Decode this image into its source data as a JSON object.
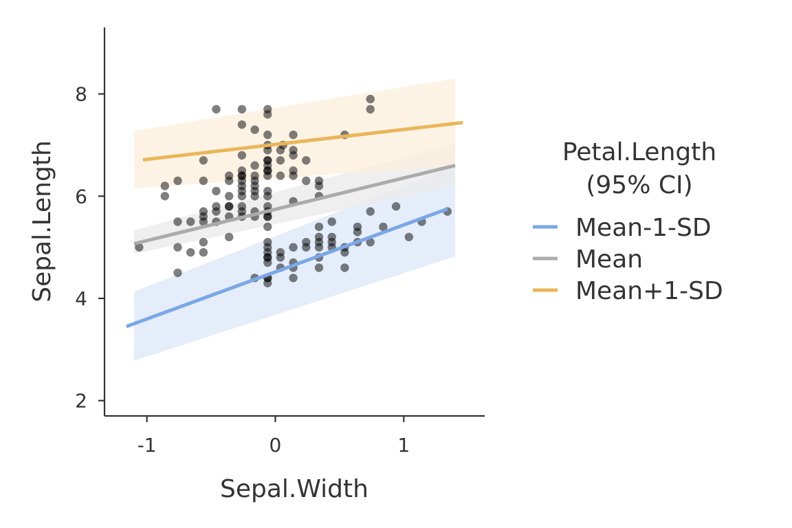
{
  "chart_data": {
    "type": "scatter",
    "xlabel": "Sepal.Width",
    "ylabel": "Sepal.Length",
    "xlim": [
      -1.33,
      1.63
    ],
    "ylim": [
      1.7,
      9.3
    ],
    "xticks": [
      -1,
      0,
      1
    ],
    "xtick_labels": [
      "-1",
      "0",
      "1"
    ],
    "yticks": [
      2,
      4,
      6,
      8
    ],
    "ytick_labels": [
      "2",
      "4",
      "6",
      "8"
    ],
    "grid": false,
    "legend": {
      "title_lines": [
        "Petal.Length",
        "(95% CI)"
      ],
      "position": "right"
    },
    "point_color": "#000000",
    "points": [
      [
        -1.06,
        5.0
      ],
      [
        -0.86,
        6.2
      ],
      [
        -0.86,
        6.0
      ],
      [
        -0.76,
        6.3
      ],
      [
        -0.76,
        5.5
      ],
      [
        -0.76,
        5.0
      ],
      [
        -0.76,
        4.5
      ],
      [
        -0.66,
        5.5
      ],
      [
        -0.66,
        4.9
      ],
      [
        -0.56,
        6.7
      ],
      [
        -0.56,
        6.3
      ],
      [
        -0.56,
        5.7
      ],
      [
        -0.56,
        5.6
      ],
      [
        -0.56,
        5.5
      ],
      [
        -0.56,
        5.1
      ],
      [
        -0.56,
        4.9
      ],
      [
        -0.46,
        7.7
      ],
      [
        -0.46,
        6.1
      ],
      [
        -0.46,
        5.8
      ],
      [
        -0.46,
        5.7
      ],
      [
        -0.46,
        5.5
      ],
      [
        -0.36,
        6.4
      ],
      [
        -0.36,
        6.3
      ],
      [
        -0.36,
        6.0
      ],
      [
        -0.36,
        5.8
      ],
      [
        -0.36,
        5.8
      ],
      [
        -0.36,
        5.6
      ],
      [
        -0.36,
        5.2
      ],
      [
        -0.26,
        7.7
      ],
      [
        -0.26,
        7.4
      ],
      [
        -0.26,
        6.8
      ],
      [
        -0.26,
        6.5
      ],
      [
        -0.26,
        6.4
      ],
      [
        -0.26,
        6.4
      ],
      [
        -0.26,
        6.3
      ],
      [
        -0.26,
        6.2
      ],
      [
        -0.26,
        6.1
      ],
      [
        -0.26,
        6.0
      ],
      [
        -0.26,
        5.8
      ],
      [
        -0.26,
        5.7
      ],
      [
        -0.26,
        5.6
      ],
      [
        -0.16,
        7.3
      ],
      [
        -0.16,
        6.6
      ],
      [
        -0.16,
        6.4
      ],
      [
        -0.16,
        6.3
      ],
      [
        -0.16,
        6.2
      ],
      [
        -0.16,
        6.1
      ],
      [
        -0.16,
        6.0
      ],
      [
        -0.16,
        5.7
      ],
      [
        -0.16,
        5.6
      ],
      [
        -0.16,
        4.4
      ],
      [
        -0.06,
        6.7
      ],
      [
        -0.06,
        5.8
      ],
      [
        -0.06,
        5.6
      ],
      [
        -0.06,
        4.4
      ],
      [
        -0.06,
        4.8
      ],
      [
        0.06,
        7.0
      ],
      [
        -0.06,
        5.1
      ],
      [
        -0.06,
        7.7
      ],
      [
        -0.06,
        7.6
      ],
      [
        -0.06,
        7.2
      ],
      [
        -0.06,
        7.0
      ],
      [
        -0.06,
        6.9
      ],
      [
        -0.06,
        6.7
      ],
      [
        -0.06,
        6.6
      ],
      [
        -0.06,
        6.5
      ],
      [
        -0.06,
        6.5
      ],
      [
        -0.06,
        6.4
      ],
      [
        -0.06,
        6.1
      ],
      [
        -0.06,
        6.0
      ],
      [
        -0.06,
        5.7
      ],
      [
        -0.06,
        5.6
      ],
      [
        -0.06,
        5.4
      ],
      [
        -0.06,
        5.0
      ],
      [
        -0.06,
        4.9
      ],
      [
        -0.06,
        4.8
      ],
      [
        -0.06,
        4.7
      ],
      [
        -0.06,
        4.4
      ],
      [
        -0.06,
        4.3
      ],
      [
        0.04,
        6.9
      ],
      [
        0.04,
        6.7
      ],
      [
        0.04,
        6.4
      ],
      [
        0.04,
        4.9
      ],
      [
        0.04,
        4.8
      ],
      [
        0.04,
        4.6
      ],
      [
        0.14,
        7.2
      ],
      [
        0.14,
        6.9
      ],
      [
        0.14,
        6.8
      ],
      [
        0.14,
        6.5
      ],
      [
        0.14,
        6.4
      ],
      [
        0.14,
        5.9
      ],
      [
        0.14,
        5.0
      ],
      [
        0.14,
        4.7
      ],
      [
        0.14,
        4.6
      ],
      [
        0.14,
        4.4
      ],
      [
        0.24,
        6.7
      ],
      [
        0.24,
        6.3
      ],
      [
        0.24,
        5.1
      ],
      [
        0.24,
        5.0
      ],
      [
        0.34,
        6.3
      ],
      [
        0.34,
        6.2
      ],
      [
        0.34,
        6.0
      ],
      [
        0.34,
        5.4
      ],
      [
        0.34,
        5.2
      ],
      [
        0.34,
        5.1
      ],
      [
        0.34,
        5.0
      ],
      [
        0.34,
        4.8
      ],
      [
        0.34,
        4.6
      ],
      [
        0.44,
        5.5
      ],
      [
        0.44,
        5.2
      ],
      [
        0.44,
        5.1
      ],
      [
        0.44,
        5.0
      ],
      [
        0.54,
        7.2
      ],
      [
        0.54,
        5.0
      ],
      [
        0.54,
        4.9
      ],
      [
        0.54,
        4.6
      ],
      [
        0.64,
        5.4
      ],
      [
        0.64,
        5.3
      ],
      [
        0.64,
        5.1
      ],
      [
        0.74,
        7.9
      ],
      [
        0.74,
        7.7
      ],
      [
        0.74,
        5.7
      ],
      [
        0.74,
        5.1
      ],
      [
        0.84,
        5.4
      ],
      [
        0.94,
        5.8
      ],
      [
        1.04,
        5.2
      ],
      [
        1.14,
        5.5
      ],
      [
        1.34,
        5.7
      ]
    ],
    "series": [
      {
        "name": "Mean-1-SD",
        "color": "#7BA7E6",
        "band_color": "#DCE7FA",
        "line": [
          [
            -1.16,
            3.45
          ],
          [
            1.34,
            5.75
          ]
        ],
        "ci_x": [
          -1.1,
          1.4
        ],
        "ci_lower": [
          2.78,
          4.82
        ],
        "ci_upper": [
          4.13,
          6.6
        ]
      },
      {
        "name": "Mean",
        "color": "#ABABAB",
        "band_color": "#E9E9E9",
        "line": [
          [
            -1.1,
            5.07
          ],
          [
            1.4,
            6.6
          ]
        ],
        "ci_x": [
          -1.1,
          1.4
        ],
        "ci_lower": [
          4.87,
          6.2
        ],
        "ci_upper": [
          5.33,
          7.03
        ]
      },
      {
        "name": "Mean+1-SD",
        "color": "#E9B65A",
        "band_color": "#FCEFDC",
        "line": [
          [
            -1.03,
            6.71
          ],
          [
            1.46,
            7.44
          ]
        ],
        "ci_x": [
          -1.1,
          1.4
        ],
        "ci_lower": [
          6.15,
          6.6
        ],
        "ci_upper": [
          7.28,
          8.3
        ]
      }
    ]
  }
}
